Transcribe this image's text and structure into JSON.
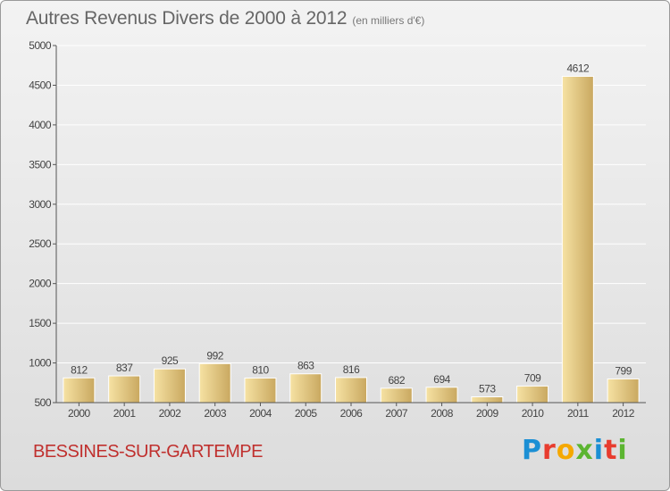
{
  "title": "Autres Revenus Divers de 2000 à 2012",
  "subtitle": "(en milliers d'€)",
  "commune": "BESSINES-SUR-GARTEMPE",
  "logo": {
    "letters": [
      "P",
      "r",
      "o",
      "x",
      "i",
      "t",
      "i"
    ],
    "colors": [
      "#1b8fd4",
      "#e83c2e",
      "#f5a800",
      "#5cb531",
      "#1b8fd4",
      "#e83c2e",
      "#5cb531"
    ]
  },
  "colors": {
    "bar_light": "#f6e2a3",
    "bar_dark": "#c9a860",
    "axis": "#555555",
    "grid": "#ffffff",
    "label_text": "#444444",
    "title_text": "#666666",
    "commune_text": "#c0302e"
  },
  "chart_data": {
    "type": "bar",
    "title": "Autres Revenus Divers de 2000 à 2012",
    "subtitle": "(en milliers d'€)",
    "categories": [
      "2000",
      "2001",
      "2002",
      "2003",
      "2004",
      "2005",
      "2006",
      "2007",
      "2008",
      "2009",
      "2010",
      "2011",
      "2012"
    ],
    "values": [
      812,
      837,
      925,
      992,
      810,
      863,
      816,
      682,
      694,
      573,
      709,
      4612,
      799
    ],
    "data_labels": [
      "812",
      "837",
      "925",
      "992",
      "810",
      "863",
      "816",
      "682",
      "694",
      "573",
      "709",
      "4612",
      "799"
    ],
    "ylim": [
      500,
      5000
    ],
    "yticks": [
      500,
      1000,
      1500,
      2000,
      2500,
      3000,
      3500,
      4000,
      4500,
      5000
    ],
    "ytick_labels": [
      "500",
      "1000",
      "1500",
      "2000",
      "2500",
      "3000",
      "3500",
      "4000",
      "4500",
      "5000"
    ],
    "grid": true,
    "legend": "none"
  }
}
